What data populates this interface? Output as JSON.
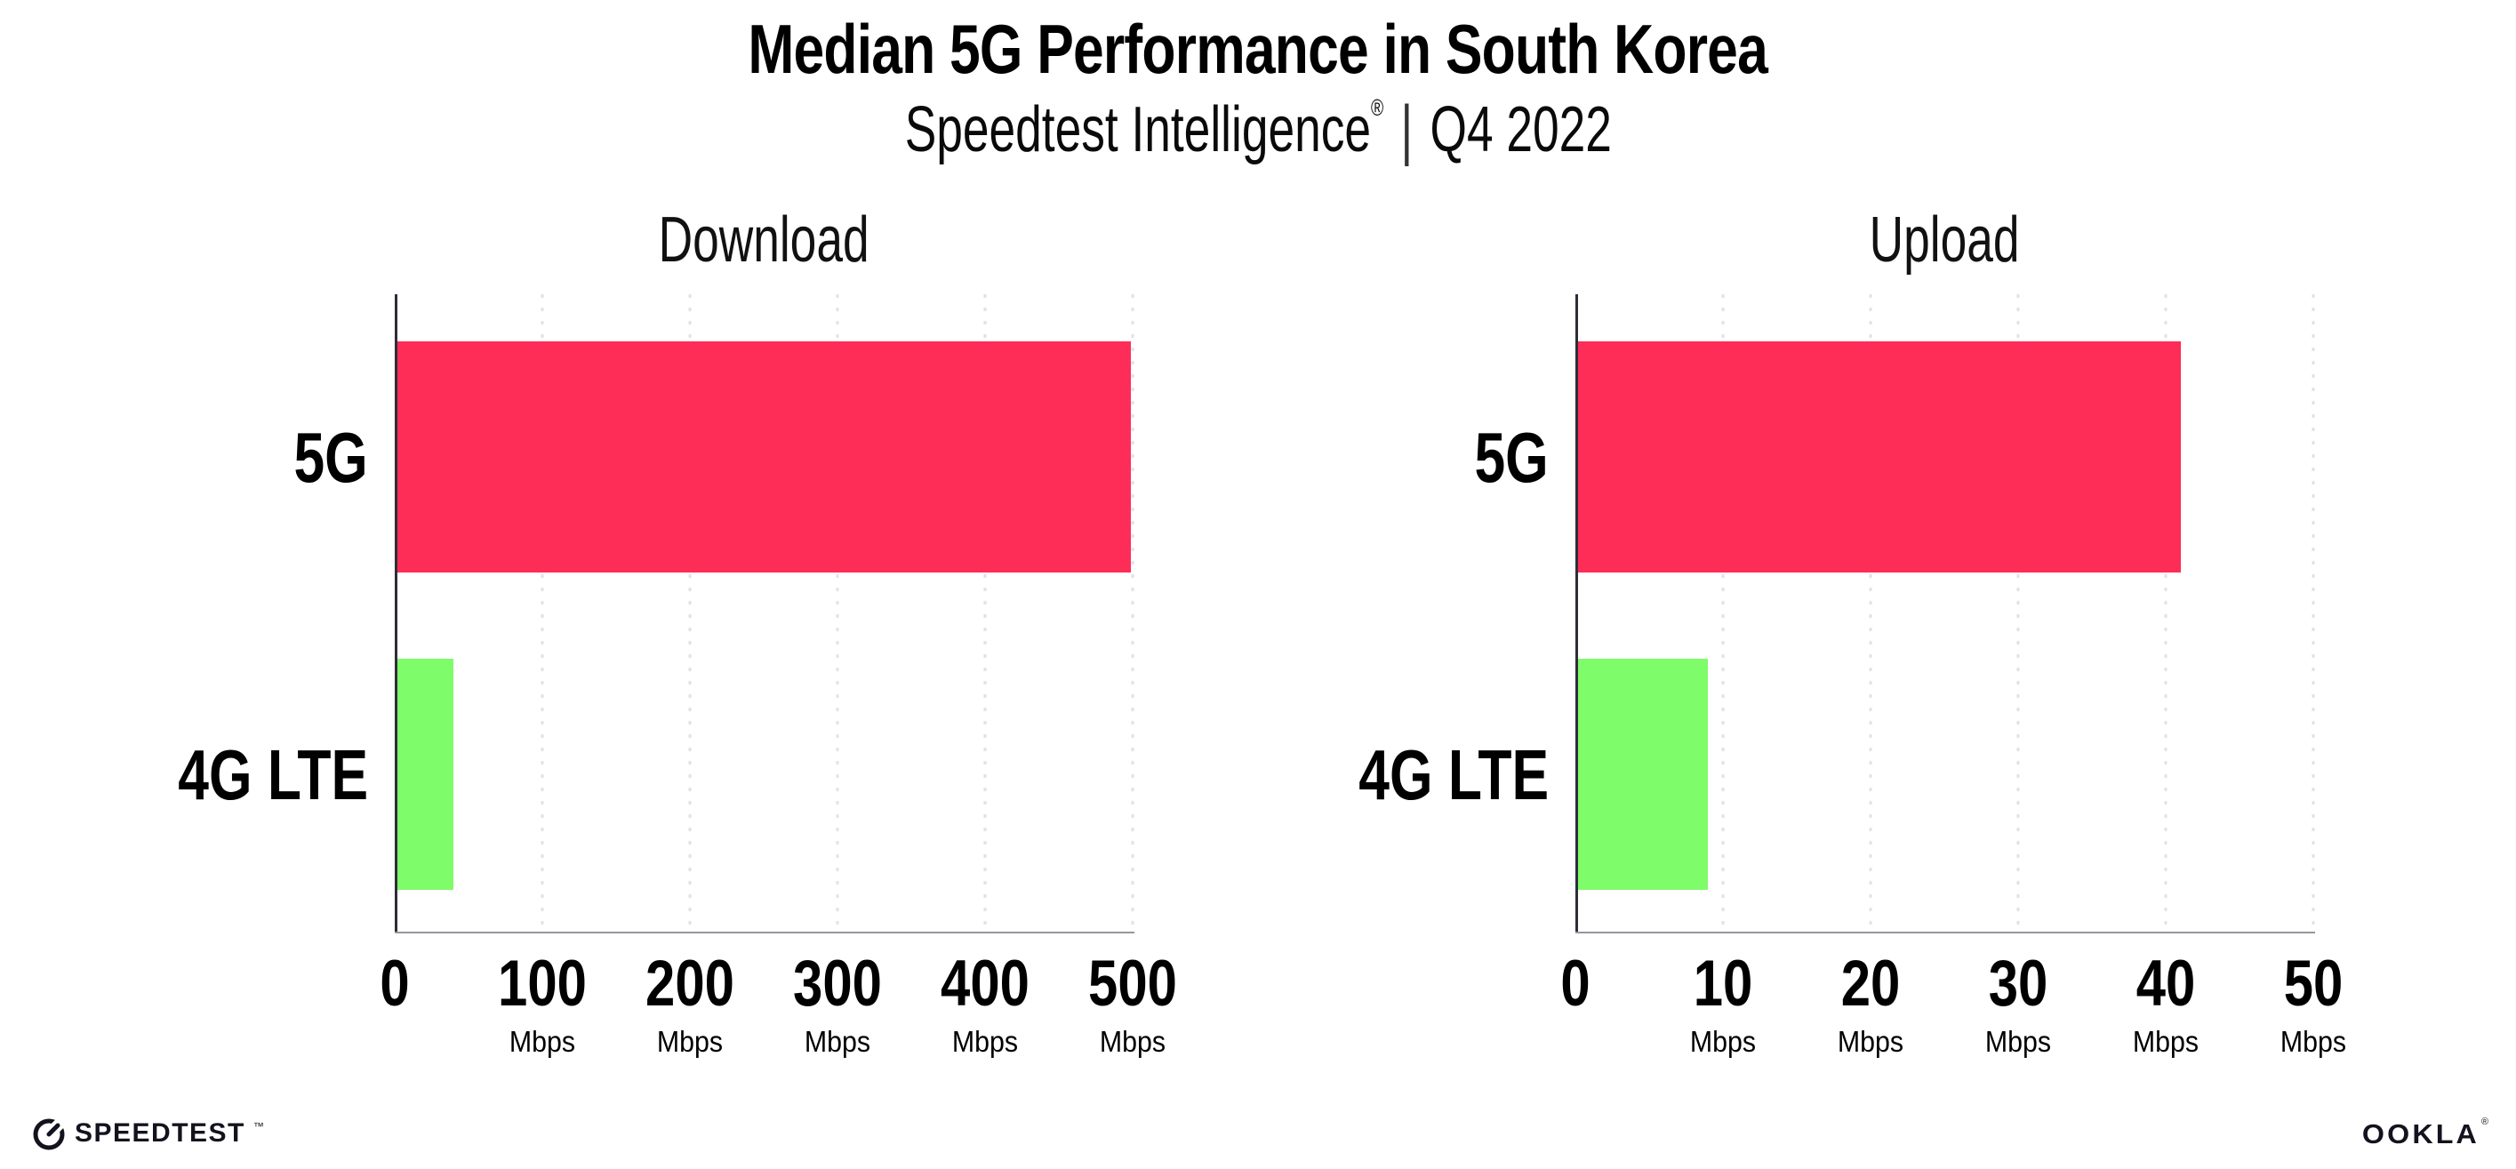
{
  "header": {
    "title": "Median 5G Performance in South Korea",
    "subtitle_product": "Speedtest Intelligence",
    "subtitle_reg": "®",
    "subtitle_divider": "|",
    "subtitle_period": "Q4 2022"
  },
  "colors": {
    "bar_5g": "#FD2D57",
    "bar_4g_lte": "#7FFC69",
    "gridline": "#E1E1EB",
    "y_axis": "#2E2E38",
    "x_axis": "#97979F",
    "text": "#000000",
    "logo": "#13131F"
  },
  "chart_data": [
    {
      "type": "bar",
      "orientation": "horizontal",
      "title": "Download",
      "categories": [
        "5G",
        "4G LTE"
      ],
      "values": [
        499,
        40
      ],
      "unit": "Mbps",
      "xlim": [
        0,
        500
      ],
      "xticks": [
        0,
        100,
        200,
        300,
        400,
        500
      ],
      "tick_unit_label": "Mbps",
      "bar_colors": [
        "#FD2D57",
        "#7FFC69"
      ],
      "grid": "dotted-vertical",
      "legend": "none"
    },
    {
      "type": "bar",
      "orientation": "horizontal",
      "title": "Upload",
      "categories": [
        "5G",
        "4G LTE"
      ],
      "values": [
        41,
        9
      ],
      "unit": "Mbps",
      "xlim": [
        0,
        50
      ],
      "xticks": [
        0,
        10,
        20,
        30,
        40,
        50
      ],
      "tick_unit_label": "Mbps",
      "bar_colors": [
        "#FD2D57",
        "#7FFC69"
      ],
      "grid": "dotted-vertical",
      "legend": "none"
    }
  ],
  "footer": {
    "speedtest_logo_text": "SPEEDTEST",
    "speedtest_tm": "™",
    "ookla_logo_text": "OOKLA",
    "ookla_reg": "®"
  }
}
